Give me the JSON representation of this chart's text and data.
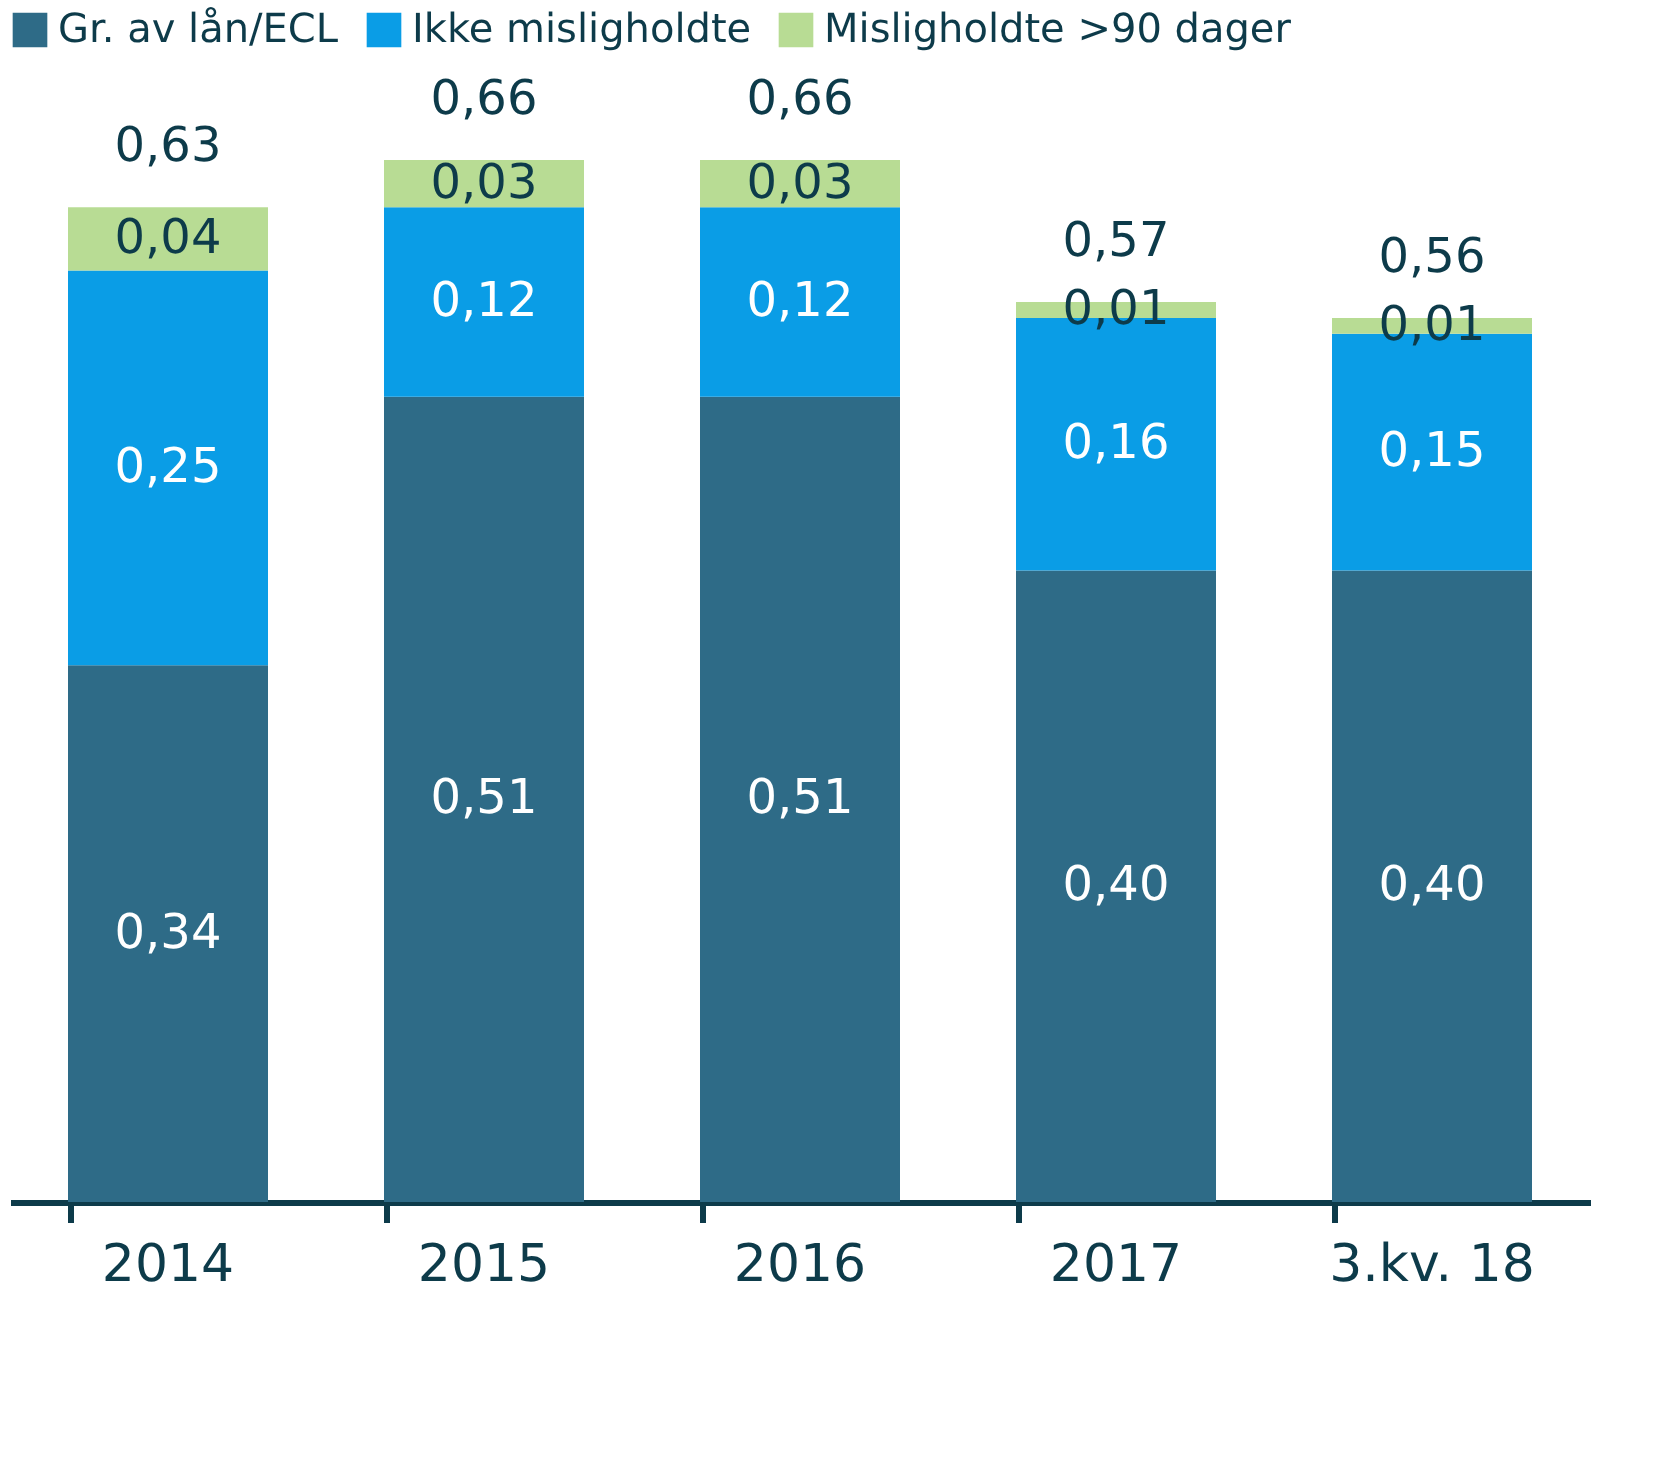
{
  "chart_data": {
    "type": "bar",
    "stacked": true,
    "categories": [
      "2014",
      "2015",
      "2016",
      "2017",
      "3.kv. 18"
    ],
    "series": [
      {
        "name": "Gr. av lån/ECL",
        "color": "#2e6b87",
        "values": [
          0.34,
          0.51,
          0.51,
          0.4,
          0.4
        ],
        "value_labels": [
          "0,34",
          "0,51",
          "0,51",
          "0,40",
          "0,40"
        ]
      },
      {
        "name": "Ikke misligholdte",
        "color": "#0a9de6",
        "values": [
          0.25,
          0.12,
          0.12,
          0.16,
          0.15
        ],
        "value_labels": [
          "0,25",
          "0,12",
          "0,12",
          "0,16",
          "0,15"
        ]
      },
      {
        "name": "Misligholdte >90 dager",
        "color": "#b8dc94",
        "values": [
          0.04,
          0.03,
          0.03,
          0.01,
          0.01
        ],
        "value_labels": [
          "0,04",
          "0,03",
          "0,03",
          "0,01",
          "0,01"
        ]
      }
    ],
    "totals": [
      "0,63",
      "0,66",
      "0,66",
      "0,57",
      "0,56"
    ],
    "tick_labels": "x",
    "legend": "top",
    "grid": false
  }
}
